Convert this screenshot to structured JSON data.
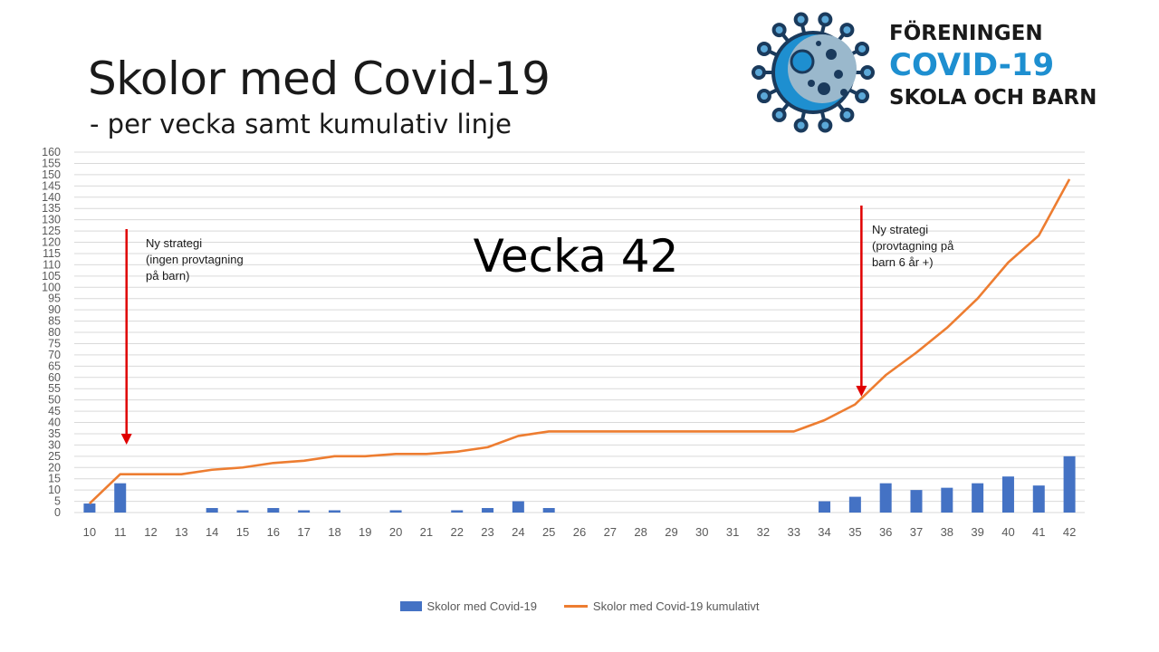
{
  "title": "Skolor med Covid-19",
  "subtitle": "- per vecka samt kumulativ linje",
  "logo": {
    "line1": "FÖRENINGEN",
    "line2": "COVID-19",
    "line3": "SKOLA OCH BARN",
    "icon": "virus-icon"
  },
  "colors": {
    "bar": "#4472c4",
    "line": "#ed7d31",
    "arrow": "#e00000",
    "logo_accent": "#1e8fd0"
  },
  "chart_data": {
    "type": "bar",
    "categories": [
      "10",
      "11",
      "12",
      "13",
      "14",
      "15",
      "16",
      "17",
      "18",
      "19",
      "20",
      "21",
      "22",
      "23",
      "24",
      "25",
      "26",
      "27",
      "28",
      "29",
      "30",
      "31",
      "32",
      "33",
      "34",
      "35",
      "36",
      "37",
      "38",
      "39",
      "40",
      "41",
      "42"
    ],
    "ylim": [
      0,
      160
    ],
    "yticks": [
      0,
      5,
      10,
      15,
      20,
      25,
      30,
      35,
      40,
      45,
      50,
      55,
      60,
      65,
      70,
      75,
      80,
      85,
      90,
      95,
      100,
      105,
      110,
      115,
      120,
      125,
      130,
      135,
      140,
      145,
      150,
      155,
      160
    ],
    "grid": true,
    "legend_position": "bottom",
    "series": [
      {
        "name": "Skolor med Covid-19",
        "type": "bar",
        "values": [
          4,
          13,
          0,
          0,
          2,
          1,
          2,
          1,
          1,
          0,
          1,
          0,
          1,
          2,
          5,
          2,
          0,
          0,
          0,
          0,
          0,
          0,
          0,
          0,
          5,
          7,
          13,
          10,
          11,
          13,
          16,
          12,
          25
        ]
      },
      {
        "name": "Skolor med Covid-19 kumulativt",
        "type": "line",
        "values": [
          4,
          17,
          17,
          17,
          19,
          20,
          22,
          23,
          25,
          25,
          26,
          26,
          27,
          29,
          34,
          36,
          36,
          36,
          36,
          36,
          36,
          36,
          36,
          36,
          41,
          48,
          61,
          71,
          82,
          95,
          111,
          123,
          148
        ]
      }
    ],
    "annotations": [
      {
        "week": "11",
        "lines": [
          "Ny strategi",
          "(ingen provtagning",
          "på barn)"
        ]
      },
      {
        "week": "35",
        "lines": [
          "Ny strategi",
          "(provtagning på",
          "barn 6 år +)"
        ]
      }
    ],
    "overlay_text": "Vecka 42"
  }
}
